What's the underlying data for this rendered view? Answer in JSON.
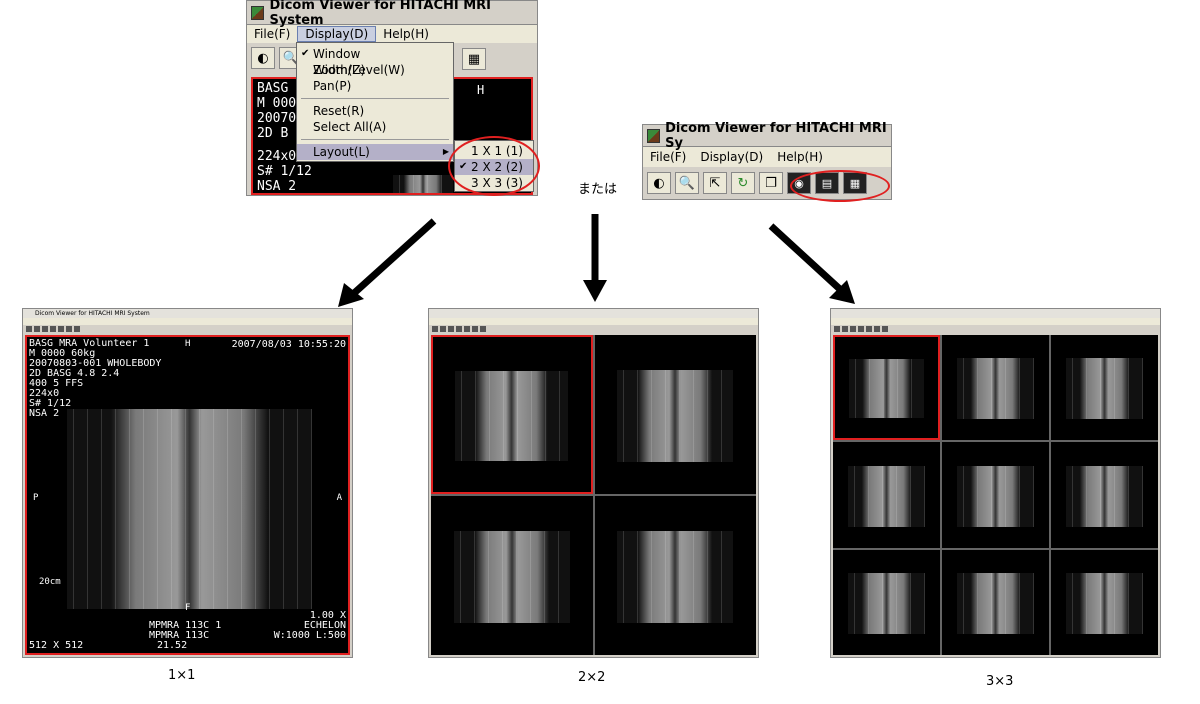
{
  "top_left_window": {
    "title": "Dicom Viewer for HITACHI MRI System",
    "menus": [
      "File(F)",
      "Display(D)",
      "Help(H)"
    ],
    "display_menu": {
      "items": [
        "Window Width/Level(W)",
        "Zoom(Z)",
        "Pan(P)",
        "Reset(R)",
        "Select All(A)",
        "Layout(L)"
      ],
      "checked": "Window Width/Level(W)"
    },
    "layout_submenu": {
      "items": [
        "1 X 1 (1)",
        "2 X 2 (2)",
        "3 X 3 (3)"
      ],
      "checked": "2 X 2 (2)"
    },
    "image_text": {
      "lines": [
        "BASG",
        "M  000",
        "20070",
        "2D  B",
        "224x0",
        "S# 1/12",
        "NSA 2"
      ],
      "h_label": "H"
    }
  },
  "right_window": {
    "title": "Dicom Viewer for HITACHI MRI Sy",
    "menus": [
      "File(F)",
      "Display(D)",
      "Help(H)"
    ],
    "toolbar_icons": [
      "contrast-icon",
      "zoom-icon",
      "pan-icon",
      "reset-icon",
      "select-all-icon",
      "layout-1x1-icon",
      "layout-2x2-icon",
      "layout-3x3-icon"
    ]
  },
  "or_text": "または",
  "screenshot_1x1": {
    "title": "Dicom Viewer for HITACHI MRI System",
    "header_left": [
      "BASG MRA Volunteer 1",
      "M  0000  60kg",
      "20070803-001  WHOLEBODY",
      "2D   BASG  4.8    2.4",
      "        400   5     FFS",
      "224x0",
      "S# 1/12",
      "NSA 2"
    ],
    "header_h": "H",
    "header_right": "2007/08/03   10:55:20",
    "left_marker": "P",
    "right_marker": "A",
    "scale": "20cm",
    "bottom_center": "F",
    "bottom_left": [
      "512 X 512"
    ],
    "bottom_mid": [
      "MPMRA  113C     1",
      "MPMRA  113C",
      "21.52"
    ],
    "bottom_right": [
      "1.00 X",
      "ECHELON",
      "W:1000  L:500"
    ]
  },
  "captions": [
    "1×1",
    "2×2",
    "3×3"
  ],
  "colors": {
    "highlight": "#e02020",
    "menu_bg": "#ece9d8",
    "toolbar_bg": "#d4d0c8"
  }
}
